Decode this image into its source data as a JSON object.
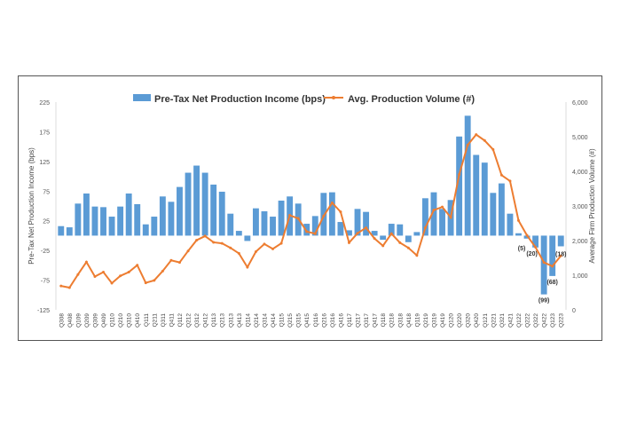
{
  "chart_data": {
    "type": "bar+line",
    "categories": [
      "Q308",
      "Q408",
      "Q109",
      "Q209",
      "Q309",
      "Q409",
      "Q110",
      "Q210",
      "Q310",
      "Q410",
      "Q111",
      "Q211",
      "Q311",
      "Q411",
      "Q112",
      "Q212",
      "Q312",
      "Q412",
      "Q113",
      "Q213",
      "Q313",
      "Q413",
      "Q114",
      "Q214",
      "Q314",
      "Q414",
      "Q115",
      "Q215",
      "Q315",
      "Q415",
      "Q116",
      "Q216",
      "Q316",
      "Q416",
      "Q117",
      "Q217",
      "Q317",
      "Q417",
      "Q118",
      "Q218",
      "Q318",
      "Q418",
      "Q119",
      "Q219",
      "Q319",
      "Q419",
      "Q120",
      "Q220",
      "Q320",
      "Q420",
      "Q121",
      "Q221",
      "Q321",
      "Q421",
      "Q122",
      "Q222",
      "Q322",
      "Q422",
      "Q123",
      "Q223"
    ],
    "series": [
      {
        "name": "Pre-Tax Net Production Income (bps)",
        "type": "bar",
        "axis": "left",
        "color": "#5b9bd5",
        "values": [
          16,
          14,
          54,
          71,
          49,
          48,
          32,
          49,
          71,
          53,
          19,
          32,
          66,
          57,
          82,
          106,
          118,
          106,
          86,
          74,
          37,
          8,
          -9,
          46,
          41,
          32,
          59,
          66,
          54,
          20,
          33,
          72,
          73,
          23,
          9,
          45,
          40,
          8,
          -7,
          20,
          19,
          -11,
          6,
          63,
          73,
          45,
          60,
          167,
          202,
          136,
          123,
          72,
          88,
          37,
          4,
          -5,
          -20,
          -99,
          -68,
          -18
        ]
      },
      {
        "name": "Avg. Production Volume (#)",
        "type": "line",
        "axis": "right",
        "color": "#ed7d31",
        "values": [
          690,
          640,
          1020,
          1380,
          960,
          1090,
          770,
          980,
          1090,
          1290,
          780,
          850,
          1120,
          1430,
          1370,
          1700,
          2010,
          2130,
          1950,
          1920,
          1790,
          1630,
          1230,
          1680,
          1900,
          1760,
          1920,
          2730,
          2640,
          2260,
          2200,
          2710,
          3090,
          2830,
          1940,
          2210,
          2370,
          2060,
          1850,
          2200,
          1940,
          1790,
          1570,
          2370,
          2880,
          2970,
          2670,
          3910,
          4760,
          5060,
          4890,
          4630,
          3890,
          3720,
          2580,
          2150,
          1810,
          1370,
          1260,
          1560
        ]
      }
    ],
    "data_labels": [
      {
        "category": "Q222",
        "text": "(5)"
      },
      {
        "category": "Q322",
        "text": "(20)"
      },
      {
        "category": "Q422",
        "text": "(99)"
      },
      {
        "category": "Q123",
        "text": "(68)"
      },
      {
        "category": "Q223",
        "text": "(18)"
      }
    ],
    "ylabel": "Pre-Tax Net Production Income (bps)",
    "y2label": "Average Firm Production Volume (#)",
    "ylim": [
      -125,
      225
    ],
    "yticks": [
      "225",
      "175",
      "125",
      "75",
      "25",
      "-25",
      "-75",
      "-125"
    ],
    "ytick_values": [
      225,
      175,
      125,
      75,
      25,
      -25,
      -75,
      -125
    ],
    "y2lim": [
      0,
      6000
    ],
    "y2ticks": [
      "6,000",
      "5,000",
      "4,000",
      "3,000",
      "2,000",
      "1,000",
      "0"
    ],
    "y2tick_values": [
      6000,
      5000,
      4000,
      3000,
      2000,
      1000,
      0
    ],
    "legend": "top-center",
    "grid": false
  }
}
